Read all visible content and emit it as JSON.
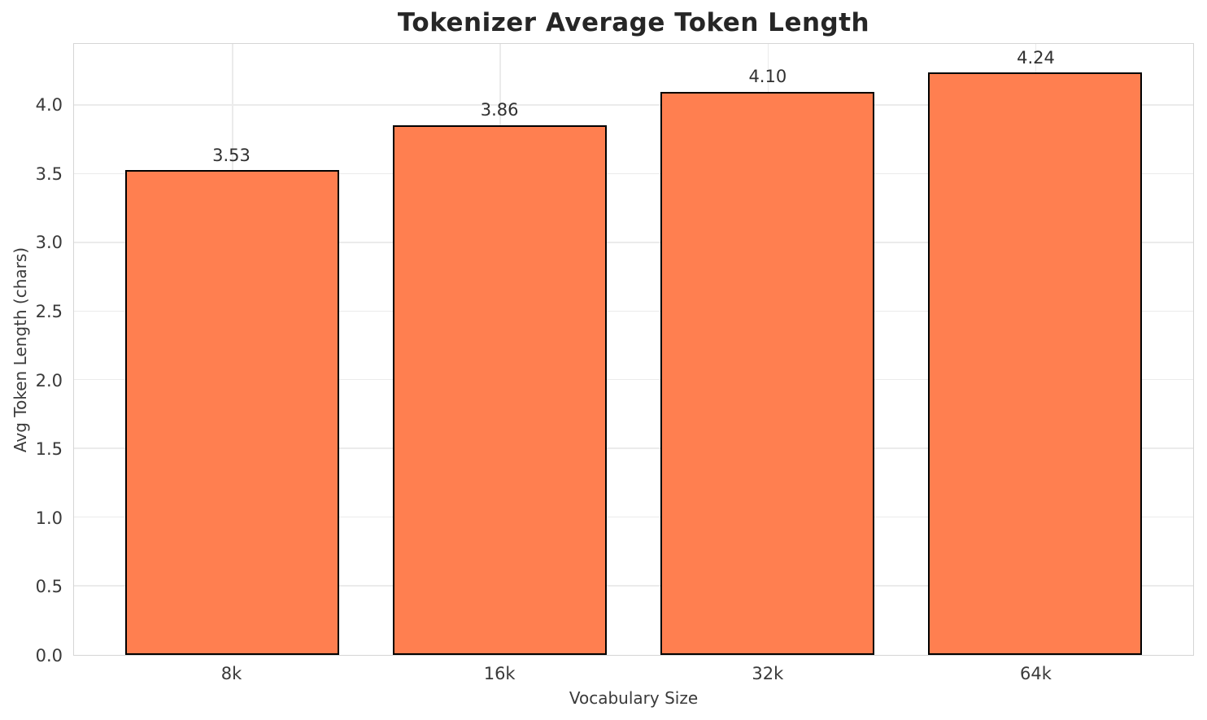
{
  "chart_data": {
    "type": "bar",
    "title": "Tokenizer Average Token Length",
    "xlabel": "Vocabulary Size",
    "ylabel": "Avg Token Length (chars)",
    "categories": [
      "8k",
      "16k",
      "32k",
      "64k"
    ],
    "values": [
      3.53,
      3.86,
      4.1,
      4.24
    ],
    "bar_labels": [
      "3.53",
      "3.86",
      "4.10",
      "4.24"
    ],
    "yticks": [
      0.0,
      0.5,
      1.0,
      1.5,
      2.0,
      2.5,
      3.0,
      3.5,
      4.0
    ],
    "ytick_labels": [
      "0.0",
      "0.5",
      "1.0",
      "1.5",
      "2.0",
      "2.5",
      "3.0",
      "3.5",
      "4.0"
    ],
    "ylim": [
      0,
      4.45
    ],
    "grid": true,
    "legend": false,
    "bar_color": "#FF7F50",
    "bar_edge_color": "#000000",
    "grid_color": "#ebebeb",
    "spine_color": "#d5d5d5",
    "title_color": "#262626",
    "tick_color": "#3a3a3a"
  }
}
